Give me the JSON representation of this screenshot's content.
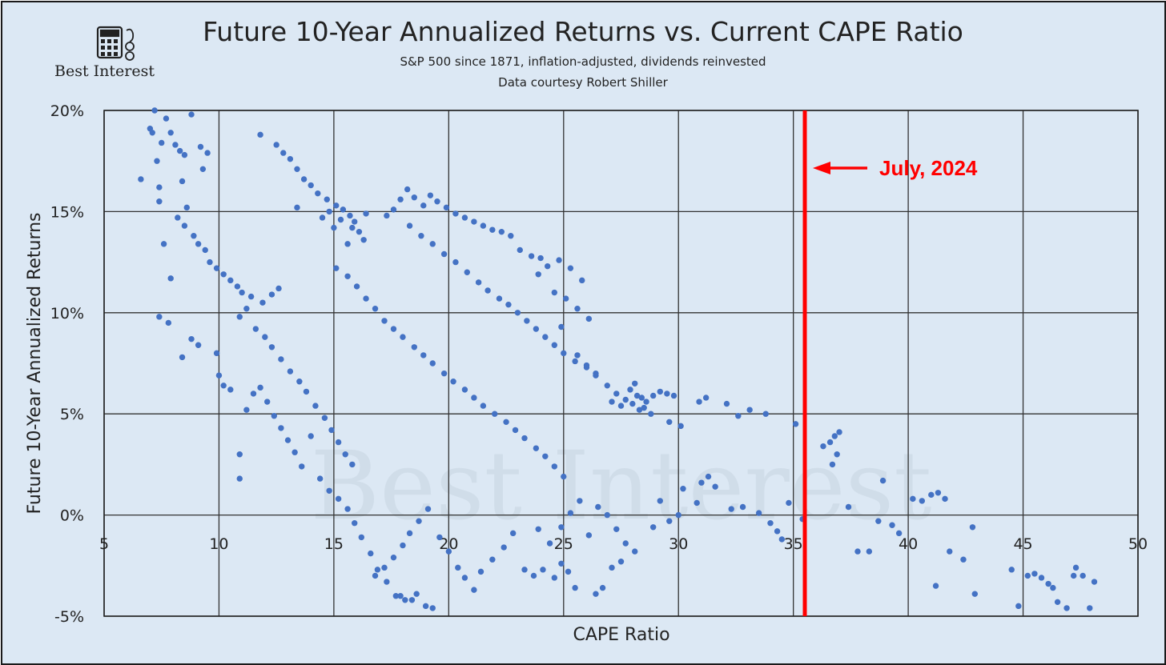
{
  "header": {
    "logo_text": "Best Interest",
    "logo_icon": "calculator-icon"
  },
  "chart_data": {
    "type": "scatter",
    "title": "Future 10-Year Annualized Returns vs. Current CAPE Ratio",
    "subtitle_lines": [
      "S&P 500 since 1871, inflation-adjusted, dividends reinvested",
      "Data courtesy Robert Shiller"
    ],
    "xlabel": "CAPE Ratio",
    "ylabel": "Future 10-Year Annualized Returns",
    "xlim": [
      5,
      50
    ],
    "ylim": [
      -5,
      20
    ],
    "x_ticks": [
      5,
      10,
      15,
      20,
      25,
      30,
      35,
      40,
      45,
      50
    ],
    "x_tick_labels": [
      "5",
      "10",
      "15",
      "20",
      "25",
      "30",
      "35",
      "40",
      "45",
      "50"
    ],
    "y_ticks": [
      -5,
      0,
      5,
      10,
      15,
      20
    ],
    "y_tick_labels": [
      "-5%",
      "0%",
      "5%",
      "10%",
      "15%",
      "20%"
    ],
    "grid": true,
    "watermark": "Best Interest",
    "point_color": "#4472c4",
    "annotation": {
      "x": 35.5,
      "label": "July, 2024",
      "color": "#ff0000"
    },
    "series": [
      {
        "points": [
          [
            6.6,
            16.6
          ],
          [
            7.0,
            19.1
          ],
          [
            7.1,
            18.9
          ],
          [
            7.2,
            20.0
          ],
          [
            7.3,
            17.5
          ],
          [
            7.4,
            16.2
          ],
          [
            7.4,
            15.5
          ],
          [
            7.5,
            18.4
          ],
          [
            7.7,
            19.6
          ],
          [
            7.9,
            18.9
          ],
          [
            8.1,
            18.3
          ],
          [
            8.3,
            18.0
          ],
          [
            8.5,
            17.8
          ],
          [
            8.8,
            19.8
          ],
          [
            8.4,
            16.5
          ],
          [
            8.6,
            15.2
          ],
          [
            9.2,
            18.2
          ],
          [
            9.5,
            17.9
          ],
          [
            9.3,
            17.1
          ],
          [
            7.4,
            9.8
          ],
          [
            7.8,
            9.5
          ],
          [
            8.4,
            7.8
          ],
          [
            8.8,
            8.7
          ],
          [
            9.1,
            8.4
          ],
          [
            9.9,
            8.0
          ],
          [
            10.0,
            6.9
          ],
          [
            7.6,
            13.4
          ],
          [
            7.9,
            11.7
          ],
          [
            8.2,
            14.7
          ],
          [
            8.5,
            14.3
          ],
          [
            8.9,
            13.8
          ],
          [
            9.1,
            13.4
          ],
          [
            9.4,
            13.1
          ],
          [
            9.6,
            12.5
          ],
          [
            9.9,
            12.2
          ],
          [
            10.2,
            11.9
          ],
          [
            10.5,
            11.6
          ],
          [
            10.8,
            11.3
          ],
          [
            11.0,
            11.0
          ],
          [
            11.4,
            10.8
          ],
          [
            11.9,
            10.5
          ],
          [
            12.3,
            10.9
          ],
          [
            12.6,
            11.2
          ],
          [
            11.2,
            10.2
          ],
          [
            10.9,
            9.8
          ],
          [
            11.6,
            9.2
          ],
          [
            12.0,
            8.8
          ],
          [
            12.3,
            8.3
          ],
          [
            12.7,
            7.7
          ],
          [
            13.1,
            7.1
          ],
          [
            13.5,
            6.6
          ],
          [
            13.8,
            6.1
          ],
          [
            14.2,
            5.4
          ],
          [
            14.6,
            4.8
          ],
          [
            14.9,
            4.2
          ],
          [
            15.2,
            3.6
          ],
          [
            15.5,
            3.0
          ],
          [
            15.8,
            2.5
          ],
          [
            11.8,
            18.8
          ],
          [
            12.5,
            18.3
          ],
          [
            12.8,
            17.9
          ],
          [
            13.1,
            17.6
          ],
          [
            13.4,
            17.1
          ],
          [
            13.7,
            16.6
          ],
          [
            14.0,
            16.3
          ],
          [
            14.3,
            15.9
          ],
          [
            14.7,
            15.6
          ],
          [
            15.1,
            15.3
          ],
          [
            15.4,
            15.1
          ],
          [
            15.7,
            14.8
          ],
          [
            15.9,
            14.5
          ],
          [
            16.1,
            14.0
          ],
          [
            16.3,
            13.6
          ],
          [
            16.4,
            14.9
          ],
          [
            15.0,
            14.2
          ],
          [
            15.6,
            13.4
          ],
          [
            14.5,
            14.7
          ],
          [
            14.8,
            15.0
          ],
          [
            15.3,
            14.6
          ],
          [
            15.8,
            14.2
          ],
          [
            13.4,
            15.2
          ],
          [
            10.2,
            6.4
          ],
          [
            10.5,
            6.2
          ],
          [
            10.9,
            3.0
          ],
          [
            10.9,
            1.8
          ],
          [
            11.2,
            5.2
          ],
          [
            11.5,
            6.0
          ],
          [
            11.8,
            6.3
          ],
          [
            12.1,
            5.6
          ],
          [
            12.4,
            4.9
          ],
          [
            12.7,
            4.3
          ],
          [
            13.0,
            3.7
          ],
          [
            13.3,
            3.1
          ],
          [
            13.6,
            2.4
          ],
          [
            14.0,
            3.9
          ],
          [
            14.4,
            1.8
          ],
          [
            14.8,
            1.2
          ],
          [
            15.2,
            0.8
          ],
          [
            15.6,
            0.3
          ],
          [
            15.9,
            -0.4
          ],
          [
            16.2,
            -1.1
          ],
          [
            16.6,
            -1.9
          ],
          [
            16.9,
            -2.7
          ],
          [
            17.3,
            -3.3
          ],
          [
            17.7,
            -4.0
          ],
          [
            18.1,
            -4.2
          ],
          [
            18.6,
            -3.9
          ],
          [
            19.0,
            -4.5
          ],
          [
            19.3,
            -4.6
          ],
          [
            15.1,
            12.2
          ],
          [
            15.6,
            11.8
          ],
          [
            16.0,
            11.3
          ],
          [
            16.4,
            10.7
          ],
          [
            16.8,
            10.2
          ],
          [
            17.2,
            9.6
          ],
          [
            17.6,
            9.2
          ],
          [
            18.0,
            8.8
          ],
          [
            18.5,
            8.3
          ],
          [
            18.9,
            7.9
          ],
          [
            19.3,
            7.5
          ],
          [
            19.8,
            7.0
          ],
          [
            20.2,
            6.6
          ],
          [
            20.7,
            6.2
          ],
          [
            21.1,
            5.8
          ],
          [
            21.5,
            5.4
          ],
          [
            22.0,
            5.0
          ],
          [
            22.5,
            4.6
          ],
          [
            22.9,
            4.2
          ],
          [
            23.3,
            3.8
          ],
          [
            23.8,
            3.3
          ],
          [
            24.2,
            2.9
          ],
          [
            24.6,
            2.4
          ],
          [
            25.0,
            1.9
          ],
          [
            17.3,
            14.8
          ],
          [
            17.6,
            15.1
          ],
          [
            17.9,
            15.6
          ],
          [
            18.2,
            16.1
          ],
          [
            18.5,
            15.7
          ],
          [
            18.9,
            15.3
          ],
          [
            19.2,
            15.8
          ],
          [
            19.5,
            15.5
          ],
          [
            19.9,
            15.2
          ],
          [
            20.3,
            14.9
          ],
          [
            20.7,
            14.7
          ],
          [
            21.1,
            14.5
          ],
          [
            21.5,
            14.3
          ],
          [
            21.9,
            14.1
          ],
          [
            22.3,
            14.0
          ],
          [
            22.7,
            13.8
          ],
          [
            18.3,
            14.3
          ],
          [
            18.8,
            13.8
          ],
          [
            19.3,
            13.4
          ],
          [
            19.8,
            12.9
          ],
          [
            20.3,
            12.5
          ],
          [
            20.8,
            12.0
          ],
          [
            21.3,
            11.5
          ],
          [
            21.7,
            11.1
          ],
          [
            22.2,
            10.7
          ],
          [
            22.6,
            10.4
          ],
          [
            23.0,
            10.0
          ],
          [
            23.4,
            9.6
          ],
          [
            23.8,
            9.2
          ],
          [
            24.2,
            8.8
          ],
          [
            24.6,
            8.4
          ],
          [
            25.0,
            8.0
          ],
          [
            25.5,
            7.6
          ],
          [
            26.0,
            7.3
          ],
          [
            26.4,
            7.0
          ],
          [
            23.1,
            13.1
          ],
          [
            23.6,
            12.8
          ],
          [
            24.0,
            12.7
          ],
          [
            24.3,
            12.3
          ],
          [
            24.8,
            12.6
          ],
          [
            25.3,
            12.2
          ],
          [
            25.8,
            11.6
          ],
          [
            23.9,
            11.9
          ],
          [
            24.6,
            11.0
          ],
          [
            25.1,
            10.7
          ],
          [
            25.6,
            10.2
          ],
          [
            26.1,
            9.7
          ],
          [
            24.9,
            9.3
          ],
          [
            25.6,
            7.9
          ],
          [
            26.0,
            7.4
          ],
          [
            26.4,
            6.9
          ],
          [
            26.9,
            6.4
          ],
          [
            27.3,
            6.0
          ],
          [
            27.7,
            5.7
          ],
          [
            28.0,
            5.5
          ],
          [
            28.3,
            5.2
          ],
          [
            28.6,
            5.6
          ],
          [
            28.9,
            5.9
          ],
          [
            29.2,
            6.1
          ],
          [
            29.5,
            6.0
          ],
          [
            29.8,
            5.9
          ],
          [
            28.2,
            5.9
          ],
          [
            27.9,
            6.2
          ],
          [
            28.5,
            5.3
          ],
          [
            28.1,
            6.5
          ],
          [
            28.8,
            5.0
          ],
          [
            29.6,
            4.6
          ],
          [
            30.1,
            4.4
          ],
          [
            27.5,
            5.4
          ],
          [
            28.4,
            5.8
          ],
          [
            27.1,
            5.6
          ],
          [
            30.9,
            5.6
          ],
          [
            31.2,
            5.8
          ],
          [
            32.1,
            5.5
          ],
          [
            32.6,
            4.9
          ],
          [
            33.1,
            5.2
          ],
          [
            33.8,
            5.0
          ],
          [
            35.1,
            4.5
          ],
          [
            31.0,
            1.6
          ],
          [
            31.3,
            1.9
          ],
          [
            31.6,
            1.4
          ],
          [
            32.3,
            0.3
          ],
          [
            32.8,
            0.4
          ],
          [
            33.5,
            0.1
          ],
          [
            34.0,
            -0.4
          ],
          [
            34.3,
            -0.8
          ],
          [
            34.8,
            0.6
          ],
          [
            34.5,
            -1.2
          ],
          [
            35.4,
            -0.2
          ],
          [
            30.2,
            1.3
          ],
          [
            30.8,
            0.6
          ],
          [
            30.0,
            0.0
          ],
          [
            29.6,
            -0.3
          ],
          [
            29.2,
            0.7
          ],
          [
            28.9,
            -0.6
          ],
          [
            36.3,
            3.4
          ],
          [
            36.6,
            3.6
          ],
          [
            36.8,
            3.9
          ],
          [
            37.0,
            4.1
          ],
          [
            36.9,
            3.0
          ],
          [
            36.7,
            2.5
          ],
          [
            37.4,
            0.4
          ],
          [
            37.8,
            -1.8
          ],
          [
            38.3,
            -1.8
          ],
          [
            38.7,
            -0.3
          ],
          [
            38.9,
            1.7
          ],
          [
            39.3,
            -0.5
          ],
          [
            39.6,
            -0.9
          ],
          [
            40.2,
            0.8
          ],
          [
            40.6,
            0.7
          ],
          [
            41.0,
            1.0
          ],
          [
            41.3,
            1.1
          ],
          [
            41.6,
            0.8
          ],
          [
            41.2,
            -3.5
          ],
          [
            41.8,
            -1.8
          ],
          [
            42.4,
            -2.2
          ],
          [
            42.9,
            -3.9
          ],
          [
            42.8,
            -0.6
          ],
          [
            44.5,
            -2.7
          ],
          [
            44.8,
            -4.5
          ],
          [
            45.2,
            -3.0
          ],
          [
            45.5,
            -2.9
          ],
          [
            45.8,
            -3.1
          ],
          [
            46.1,
            -3.4
          ],
          [
            46.3,
            -3.6
          ],
          [
            46.5,
            -4.3
          ],
          [
            46.9,
            -4.6
          ],
          [
            47.2,
            -3.0
          ],
          [
            47.3,
            -2.6
          ],
          [
            47.6,
            -3.0
          ],
          [
            47.9,
            -4.6
          ],
          [
            48.1,
            -3.3
          ],
          [
            16.8,
            -3.0
          ],
          [
            17.2,
            -2.6
          ],
          [
            17.6,
            -2.1
          ],
          [
            18.0,
            -1.5
          ],
          [
            18.3,
            -0.9
          ],
          [
            18.7,
            -0.3
          ],
          [
            19.1,
            0.3
          ],
          [
            19.6,
            -1.1
          ],
          [
            20.0,
            -1.8
          ],
          [
            20.4,
            -2.6
          ],
          [
            20.7,
            -3.1
          ],
          [
            21.1,
            -3.7
          ],
          [
            21.4,
            -2.8
          ],
          [
            21.9,
            -2.2
          ],
          [
            22.4,
            -1.6
          ],
          [
            22.8,
            -0.9
          ],
          [
            23.3,
            -2.7
          ],
          [
            23.7,
            -3.0
          ],
          [
            24.1,
            -2.7
          ],
          [
            24.6,
            -3.1
          ],
          [
            24.9,
            -2.4
          ],
          [
            25.2,
            -2.8
          ],
          [
            25.5,
            -3.6
          ],
          [
            26.4,
            -3.9
          ],
          [
            26.7,
            -3.6
          ],
          [
            27.1,
            -2.6
          ],
          [
            27.5,
            -2.3
          ],
          [
            24.9,
            -0.6
          ],
          [
            25.3,
            0.1
          ],
          [
            25.7,
            0.7
          ],
          [
            26.1,
            -1.0
          ],
          [
            26.5,
            0.4
          ],
          [
            26.9,
            0.0
          ],
          [
            27.3,
            -0.7
          ],
          [
            27.7,
            -1.4
          ],
          [
            28.1,
            -1.8
          ],
          [
            24.4,
            -1.4
          ],
          [
            23.9,
            -0.7
          ],
          [
            17.9,
            -4.0
          ],
          [
            18.4,
            -4.2
          ]
        ]
      }
    ]
  }
}
